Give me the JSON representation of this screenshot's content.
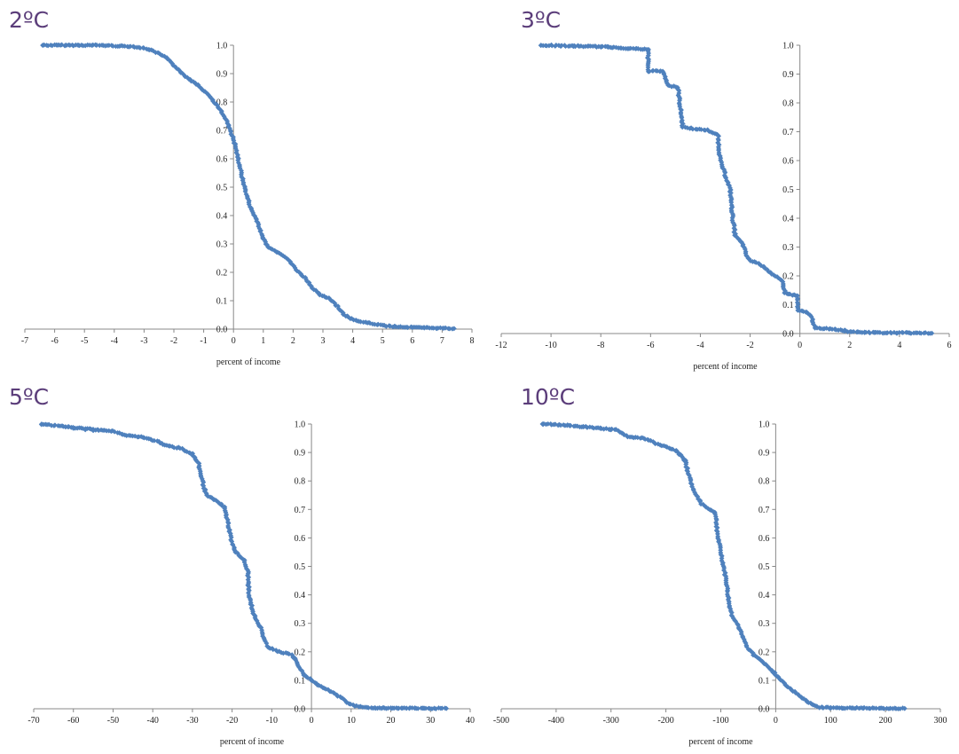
{
  "chart_data": [
    {
      "type": "scatter",
      "title": "2ºC",
      "xlabel": "percent of income",
      "ylabel": "",
      "xlim": [
        -7,
        8
      ],
      "ylim": [
        0,
        1
      ],
      "xticks": [
        "-7",
        "-6",
        "-5",
        "-4",
        "-3",
        "-2",
        "-1",
        "0",
        "1",
        "2",
        "3",
        "4",
        "5",
        "6",
        "7",
        "8"
      ],
      "yticks": [
        "0.0",
        "0.1",
        "0.2",
        "0.3",
        "0.4",
        "0.5",
        "0.6",
        "0.7",
        "0.8",
        "0.9",
        "1.0"
      ],
      "marker_color": "#4f81bd",
      "grid": false,
      "curve": [
        [
          -6.4,
          1.0
        ],
        [
          -4.5,
          1.0
        ],
        [
          -3.3,
          0.995
        ],
        [
          -2.8,
          0.985
        ],
        [
          -2.3,
          0.96
        ],
        [
          -1.9,
          0.92
        ],
        [
          -1.6,
          0.89
        ],
        [
          -1.2,
          0.86
        ],
        [
          -0.8,
          0.82
        ],
        [
          -0.5,
          0.78
        ],
        [
          -0.3,
          0.75
        ],
        [
          -0.1,
          0.7
        ],
        [
          0.05,
          0.65
        ],
        [
          0.2,
          0.58
        ],
        [
          0.3,
          0.53
        ],
        [
          0.45,
          0.47
        ],
        [
          0.6,
          0.42
        ],
        [
          0.8,
          0.38
        ],
        [
          0.95,
          0.33
        ],
        [
          1.15,
          0.29
        ],
        [
          1.5,
          0.27
        ],
        [
          1.8,
          0.25
        ],
        [
          2.1,
          0.21
        ],
        [
          2.4,
          0.18
        ],
        [
          2.7,
          0.14
        ],
        [
          2.9,
          0.12
        ],
        [
          3.2,
          0.11
        ],
        [
          3.5,
          0.08
        ],
        [
          3.7,
          0.05
        ],
        [
          4.1,
          0.03
        ],
        [
          4.6,
          0.02
        ],
        [
          5.2,
          0.01
        ],
        [
          6.0,
          0.006
        ],
        [
          7.4,
          0.002
        ]
      ],
      "tail_points": [
        [
          -6.4,
          1.0
        ],
        [
          -5.9,
          1.0
        ],
        [
          -5.6,
          1.0
        ],
        [
          -5.2,
          1.0
        ],
        [
          -4.6,
          1.0
        ],
        [
          5.4,
          0.01
        ],
        [
          6.0,
          0.006
        ],
        [
          6.4,
          0.004
        ],
        [
          6.8,
          0.003
        ],
        [
          7.4,
          0.002
        ]
      ]
    },
    {
      "type": "scatter",
      "title": "3ºC",
      "xlabel": "percent of income",
      "ylabel": "",
      "xlim": [
        -12,
        6
      ],
      "ylim": [
        0,
        1
      ],
      "xticks": [
        "-12",
        "-10",
        "-8",
        "-6",
        "-4",
        "-2",
        "0",
        "2",
        "4",
        "6"
      ],
      "yticks": [
        "0.0",
        "0.1",
        "0.2",
        "0.3",
        "0.4",
        "0.5",
        "0.6",
        "0.7",
        "0.8",
        "0.9",
        "1.0"
      ],
      "marker_color": "#4f81bd",
      "grid": false,
      "curve": [
        [
          -10.4,
          1.0
        ],
        [
          -8.0,
          0.995
        ],
        [
          -7.0,
          0.99
        ],
        [
          -6.1,
          0.985
        ],
        [
          -6.1,
          0.91
        ],
        [
          -5.5,
          0.91
        ],
        [
          -5.3,
          0.86
        ],
        [
          -4.9,
          0.855
        ],
        [
          -4.8,
          0.78
        ],
        [
          -4.7,
          0.715
        ],
        [
          -4.2,
          0.71
        ],
        [
          -3.7,
          0.705
        ],
        [
          -3.3,
          0.69
        ],
        [
          -3.2,
          0.6
        ],
        [
          -3.0,
          0.55
        ],
        [
          -2.8,
          0.5
        ],
        [
          -2.7,
          0.4
        ],
        [
          -2.6,
          0.34
        ],
        [
          -2.3,
          0.31
        ],
        [
          -2.1,
          0.26
        ],
        [
          -1.9,
          0.25
        ],
        [
          -1.6,
          0.24
        ],
        [
          -1.3,
          0.22
        ],
        [
          -1.0,
          0.2
        ],
        [
          -0.7,
          0.18
        ],
        [
          -0.6,
          0.14
        ],
        [
          -0.1,
          0.13
        ],
        [
          -0.1,
          0.08
        ],
        [
          0.3,
          0.075
        ],
        [
          0.5,
          0.05
        ],
        [
          0.6,
          0.02
        ],
        [
          1.4,
          0.015
        ],
        [
          2.1,
          0.005
        ],
        [
          3.0,
          0.003
        ],
        [
          4.4,
          0.002
        ],
        [
          5.3,
          0.001
        ]
      ],
      "tail_points": [
        [
          -10.4,
          1.0
        ],
        [
          -9.6,
          0.997
        ],
        [
          -9.1,
          0.996
        ],
        [
          -8.0,
          0.995
        ],
        [
          -7.7,
          0.993
        ],
        [
          1.4,
          0.015
        ],
        [
          1.8,
          0.012
        ],
        [
          2.3,
          0.006
        ],
        [
          2.6,
          0.005
        ],
        [
          3.0,
          0.003
        ],
        [
          3.9,
          0.002
        ],
        [
          4.4,
          0.002
        ],
        [
          5.3,
          0.001
        ]
      ]
    },
    {
      "type": "scatter",
      "title": "5ºC",
      "xlabel": "percent of income",
      "ylabel": "",
      "xlim": [
        -70,
        40
      ],
      "ylim": [
        0,
        1
      ],
      "xticks": [
        "-70",
        "-60",
        "-50",
        "-40",
        "-30",
        "-20",
        "-10",
        "0",
        "10",
        "20",
        "30",
        "40"
      ],
      "yticks": [
        "0.0",
        "0.1",
        "0.2",
        "0.3",
        "0.4",
        "0.5",
        "0.6",
        "0.7",
        "0.8",
        "0.9",
        "1.0"
      ],
      "marker_color": "#4f81bd",
      "grid": false,
      "curve": [
        [
          -68,
          1.0
        ],
        [
          -62,
          0.99
        ],
        [
          -58,
          0.985
        ],
        [
          -54,
          0.98
        ],
        [
          -50,
          0.975
        ],
        [
          -47,
          0.96
        ],
        [
          -43,
          0.955
        ],
        [
          -39,
          0.94
        ],
        [
          -37,
          0.925
        ],
        [
          -33,
          0.915
        ],
        [
          -30,
          0.895
        ],
        [
          -28.5,
          0.86
        ],
        [
          -27.5,
          0.8
        ],
        [
          -26.5,
          0.75
        ],
        [
          -24,
          0.73
        ],
        [
          -22,
          0.71
        ],
        [
          -21,
          0.65
        ],
        [
          -20,
          0.58
        ],
        [
          -19,
          0.55
        ],
        [
          -17,
          0.52
        ],
        [
          -16,
          0.48
        ],
        [
          -15.8,
          0.4
        ],
        [
          -14.5,
          0.33
        ],
        [
          -13,
          0.29
        ],
        [
          -12,
          0.25
        ],
        [
          -11,
          0.215
        ],
        [
          -8,
          0.2
        ],
        [
          -5,
          0.19
        ],
        [
          -4,
          0.17
        ],
        [
          -2,
          0.12
        ],
        [
          0,
          0.1
        ],
        [
          2,
          0.08
        ],
        [
          5,
          0.06
        ],
        [
          8,
          0.035
        ],
        [
          9,
          0.02
        ],
        [
          11,
          0.01
        ],
        [
          15,
          0.003
        ],
        [
          22,
          0.002
        ],
        [
          34,
          0.001
        ]
      ],
      "tail_points": [
        [
          -68,
          1.0
        ],
        [
          -62,
          0.99
        ],
        [
          -60,
          0.985
        ],
        [
          -57,
          0.98
        ],
        [
          -55,
          0.977
        ],
        [
          12,
          0.007
        ],
        [
          14,
          0.005
        ],
        [
          16,
          0.004
        ],
        [
          18,
          0.003
        ],
        [
          20,
          0.003
        ],
        [
          22,
          0.002
        ],
        [
          24,
          0.002
        ],
        [
          26,
          0.002
        ],
        [
          28,
          0.002
        ],
        [
          34,
          0.001
        ]
      ]
    },
    {
      "type": "scatter",
      "title": "10ºC",
      "xlabel": "percent of income",
      "ylabel": "",
      "xlim": [
        -500,
        300
      ],
      "ylim": [
        0,
        1
      ],
      "xticks": [
        "-500",
        "-400",
        "-300",
        "-200",
        "-100",
        "0",
        "100",
        "200",
        "300"
      ],
      "yticks": [
        "0.0",
        "0.1",
        "0.2",
        "0.3",
        "0.4",
        "0.5",
        "0.6",
        "0.7",
        "0.8",
        "0.9",
        "1.0"
      ],
      "marker_color": "#4f81bd",
      "grid": false,
      "curve": [
        [
          -425,
          1.0
        ],
        [
          -380,
          0.995
        ],
        [
          -350,
          0.99
        ],
        [
          -320,
          0.985
        ],
        [
          -290,
          0.98
        ],
        [
          -270,
          0.955
        ],
        [
          -240,
          0.95
        ],
        [
          -215,
          0.93
        ],
        [
          -200,
          0.92
        ],
        [
          -180,
          0.905
        ],
        [
          -165,
          0.87
        ],
        [
          -155,
          0.8
        ],
        [
          -148,
          0.76
        ],
        [
          -135,
          0.72
        ],
        [
          -120,
          0.7
        ],
        [
          -110,
          0.69
        ],
        [
          -105,
          0.6
        ],
        [
          -100,
          0.55
        ],
        [
          -95,
          0.5
        ],
        [
          -90,
          0.45
        ],
        [
          -85,
          0.37
        ],
        [
          -80,
          0.33
        ],
        [
          -70,
          0.3
        ],
        [
          -60,
          0.25
        ],
        [
          -50,
          0.21
        ],
        [
          -40,
          0.19
        ],
        [
          -20,
          0.16
        ],
        [
          0,
          0.12
        ],
        [
          20,
          0.08
        ],
        [
          40,
          0.05
        ],
        [
          55,
          0.03
        ],
        [
          65,
          0.015
        ],
        [
          80,
          0.005
        ],
        [
          120,
          0.003
        ],
        [
          180,
          0.002
        ],
        [
          235,
          0.001
        ]
      ],
      "tail_points": [
        [
          -425,
          1.0
        ],
        [
          -380,
          0.995
        ],
        [
          -375,
          0.994
        ],
        [
          -350,
          0.99
        ],
        [
          -320,
          0.985
        ],
        [
          -300,
          0.98
        ],
        [
          85,
          0.005
        ],
        [
          100,
          0.004
        ],
        [
          120,
          0.003
        ],
        [
          140,
          0.003
        ],
        [
          160,
          0.002
        ],
        [
          190,
          0.002
        ],
        [
          235,
          0.001
        ]
      ]
    }
  ]
}
